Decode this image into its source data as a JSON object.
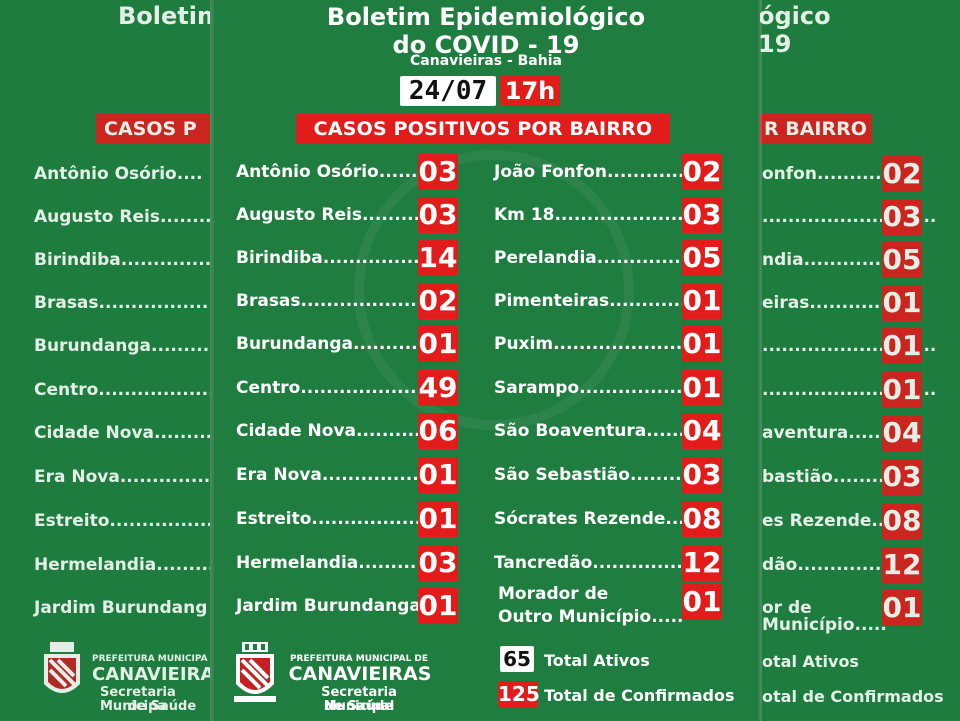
{
  "title": {
    "line1": "Boletim Epidemiológico",
    "line2": "do COVID - 19",
    "subtitle": "Canavieiras - Bahia"
  },
  "date": "24/07",
  "time": "17h",
  "heading": "CASOS POSITIVOS POR BAIRRO",
  "left_column": [
    {
      "name": "Antônio Osório......",
      "count": "03"
    },
    {
      "name": "Augusto Reis...........",
      "count": "03"
    },
    {
      "name": "Birindiba................",
      "count": "14"
    },
    {
      "name": "Brasas....................",
      "count": "02"
    },
    {
      "name": "Burundanga...........",
      "count": "01"
    },
    {
      "name": "Centro.....................",
      "count": "49"
    },
    {
      "name": "Cidade Nova..........",
      "count": "06"
    },
    {
      "name": "Era Nova................",
      "count": "01"
    },
    {
      "name": "Estreito..................",
      "count": "01"
    },
    {
      "name": "Hermelandia..........",
      "count": "03"
    },
    {
      "name": "Jardim Burundanga",
      "count": "01"
    }
  ],
  "right_column": [
    {
      "name": "João Fonfon............",
      "count": "02"
    },
    {
      "name": "Km 18.......................",
      "count": "03"
    },
    {
      "name": "Perelandia..............",
      "count": "05"
    },
    {
      "name": "Pimenteiras............",
      "count": "01"
    },
    {
      "name": "Puxim.......................",
      "count": "01"
    },
    {
      "name": "Sarampo..................",
      "count": "01"
    },
    {
      "name": "São Boaventura......",
      "count": "04"
    },
    {
      "name": "São Sebastião.........",
      "count": "03"
    },
    {
      "name": "Sócrates Rezende....",
      "count": "08"
    },
    {
      "name": "Tancredão...............",
      "count": "12"
    }
  ],
  "other_city": {
    "line1": "Morador de",
    "line2": "Outro Município.....",
    "count": "01"
  },
  "totals": {
    "active_value": "65",
    "active_label": "Total Ativos",
    "confirmed_value": "125",
    "confirmed_label": "Total de Confirmados"
  },
  "logo": {
    "line1": "PREFEITURA MUNICIPAL DE",
    "line2": "CANAVIEIRAS",
    "line3": "Secretaria Municipal",
    "line4": "de Saúde"
  },
  "side_left": {
    "title_fragment": "Boletim",
    "heading_fragment": "CASOS P",
    "names": [
      "Antônio Osório....",
      "Augusto Reis.........",
      "Birindiba...............",
      "Brasas....................",
      "Burundanga..........",
      "Centro....................",
      "Cidade Nova.........",
      "Era Nova...............",
      "Estreito..................",
      "Hermelandia..........",
      "Jardim Burundang"
    ],
    "logo_line1": "PREFEITURA MUNICIPA",
    "logo_line2": "CANAVIEIRA",
    "logo_line3": "Secretaria Municipa",
    "logo_line4": "de Saúde"
  },
  "side_right": {
    "title_fragment": "ógico",
    "title_fragment2": "19",
    "heading_fragment": "R BAIRRO",
    "names": [
      "onfon............",
      "...........................",
      "ndia..............",
      "eiras............",
      "...........................",
      "...........................",
      "aventura......",
      "bastião.........",
      "es Rezende....",
      "dão...............",
      "or de"
    ],
    "counts": [
      "02",
      "03",
      "05",
      "01",
      "01",
      "01",
      "04",
      "03",
      "08",
      "12",
      "01"
    ],
    "tail_line": "Município.....",
    "total_active": "otal Ativos",
    "total_confirmed": "otal de Confirmados"
  },
  "colors": {
    "background": "#1f7d3f",
    "accent_red": "#e21b1b",
    "text": "#ffffff"
  }
}
